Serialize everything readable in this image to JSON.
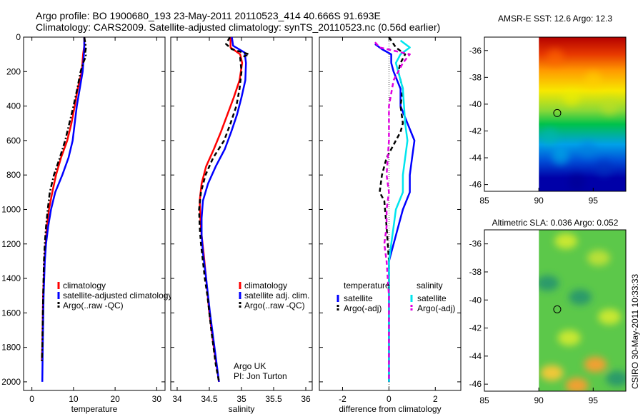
{
  "header": {
    "line1": "Argo profile: BO 1900680_193 23-May-2011 20110523_414 40.666S 91.693E",
    "line2": "Climatology: CARS2009. Satellite-adjusted climatology: synTS_20110523.nc (0.56d earlier)"
  },
  "colors": {
    "climatology": "#ff0000",
    "satellite": "#0000ff",
    "argo": "#000000",
    "satellite_salinity": "#00e5ee",
    "argo_salinity": "#e000e0"
  },
  "credit": "CSIRO 30-May-2011 10:33:33",
  "chart_data": [
    {
      "id": "temperature",
      "type": "line",
      "xlabel": "temperature",
      "ylabel": "",
      "xlim": [
        -2,
        32
      ],
      "xticks": [
        0,
        10,
        20,
        30
      ],
      "ylim": [
        0,
        2050
      ],
      "yticks": [
        0,
        200,
        400,
        600,
        800,
        1000,
        1200,
        1400,
        1600,
        1800,
        2000
      ],
      "y_reversed": true,
      "legend": [
        "climatology",
        "satellite-adjusted climatology",
        "Argo(..raw -QC)"
      ],
      "legend_position": "lower-right",
      "series": [
        {
          "name": "climatology",
          "style": "solid",
          "color_key": "climatology",
          "points": [
            [
              12.6,
              0
            ],
            [
              12.6,
              50
            ],
            [
              12.3,
              100
            ],
            [
              12.0,
              200
            ],
            [
              11.0,
              300
            ],
            [
              10.3,
              400
            ],
            [
              9.5,
              500
            ],
            [
              8.5,
              600
            ],
            [
              7.0,
              700
            ],
            [
              5.8,
              800
            ],
            [
              4.9,
              900
            ],
            [
              4.1,
              1000
            ],
            [
              3.6,
              1100
            ],
            [
              3.3,
              1200
            ],
            [
              3.0,
              1300
            ],
            [
              2.7,
              1500
            ],
            [
              2.5,
              1800
            ],
            [
              2.4,
              1880
            ]
          ]
        },
        {
          "name": "satellite-adjusted climatology",
          "style": "solid",
          "color_key": "satellite",
          "points": [
            [
              12.6,
              0
            ],
            [
              12.6,
              50
            ],
            [
              12.5,
              100
            ],
            [
              12.2,
              200
            ],
            [
              11.5,
              300
            ],
            [
              10.8,
              400
            ],
            [
              10.3,
              500
            ],
            [
              9.8,
              600
            ],
            [
              8.8,
              700
            ],
            [
              7.3,
              800
            ],
            [
              5.6,
              900
            ],
            [
              4.6,
              1000
            ],
            [
              3.9,
              1100
            ],
            [
              3.4,
              1200
            ],
            [
              3.1,
              1300
            ],
            [
              2.8,
              1500
            ],
            [
              2.6,
              1800
            ],
            [
              2.5,
              2000
            ]
          ]
        },
        {
          "name": "Argo(..raw -QC)",
          "style": "dashdot",
          "color_key": "argo",
          "points": [
            [
              12.6,
              0
            ],
            [
              13.0,
              60
            ],
            [
              12.8,
              90
            ],
            [
              13.0,
              110
            ],
            [
              12.3,
              150
            ],
            [
              11.7,
              200
            ],
            [
              10.9,
              300
            ],
            [
              10.0,
              400
            ],
            [
              9.0,
              500
            ],
            [
              8.0,
              600
            ],
            [
              6.7,
              700
            ],
            [
              5.3,
              800
            ],
            [
              4.3,
              900
            ],
            [
              3.8,
              1000
            ],
            [
              3.4,
              1100
            ],
            [
              3.1,
              1200
            ],
            [
              2.9,
              1300
            ],
            [
              2.7,
              1500
            ],
            [
              2.5,
              1800
            ],
            [
              2.4,
              1880
            ]
          ]
        }
      ]
    },
    {
      "id": "salinity",
      "type": "line",
      "xlabel": "salinity",
      "ylabel": "",
      "xlim": [
        33.9,
        36.1
      ],
      "xticks": [
        34,
        34.5,
        35,
        35.5,
        36
      ],
      "ylim": [
        0,
        2050
      ],
      "y_reversed": true,
      "legend": [
        "climatology",
        "satellite adj. clim.",
        "Argo(..raw -QC)"
      ],
      "legend_position": "lower-right",
      "annotation": [
        "Argo UK",
        "PI: Jon Turton"
      ],
      "series": [
        {
          "name": "climatology",
          "style": "solid",
          "color_key": "climatology",
          "points": [
            [
              34.83,
              0
            ],
            [
              34.83,
              60
            ],
            [
              34.98,
              100
            ],
            [
              35.01,
              150
            ],
            [
              34.97,
              250
            ],
            [
              34.88,
              350
            ],
            [
              34.78,
              450
            ],
            [
              34.68,
              550
            ],
            [
              34.57,
              650
            ],
            [
              34.45,
              750
            ],
            [
              34.38,
              850
            ],
            [
              34.35,
              950
            ],
            [
              34.36,
              1050
            ],
            [
              34.38,
              1150
            ],
            [
              34.41,
              1250
            ],
            [
              34.45,
              1400
            ],
            [
              34.5,
              1600
            ],
            [
              34.57,
              1800
            ],
            [
              34.65,
              2000
            ]
          ]
        },
        {
          "name": "satellite adj. clim.",
          "style": "solid",
          "color_key": "satellite",
          "points": [
            [
              34.85,
              0
            ],
            [
              34.87,
              50
            ],
            [
              35.05,
              90
            ],
            [
              35.07,
              150
            ],
            [
              35.06,
              250
            ],
            [
              35.0,
              350
            ],
            [
              34.93,
              450
            ],
            [
              34.84,
              550
            ],
            [
              34.74,
              650
            ],
            [
              34.6,
              750
            ],
            [
              34.48,
              850
            ],
            [
              34.4,
              950
            ],
            [
              34.38,
              1050
            ],
            [
              34.38,
              1150
            ],
            [
              34.4,
              1250
            ],
            [
              34.45,
              1400
            ],
            [
              34.51,
              1600
            ],
            [
              34.58,
              1800
            ],
            [
              34.65,
              2000
            ]
          ]
        },
        {
          "name": "Argo(..raw -QC)",
          "style": "dashed",
          "color_key": "argo",
          "points": [
            [
              34.82,
              0
            ],
            [
              34.76,
              40
            ],
            [
              34.85,
              70
            ],
            [
              35.12,
              100
            ],
            [
              34.98,
              120
            ],
            [
              35.0,
              200
            ],
            [
              34.97,
              300
            ],
            [
              34.92,
              400
            ],
            [
              34.83,
              500
            ],
            [
              34.73,
              600
            ],
            [
              34.56,
              700
            ],
            [
              34.44,
              800
            ],
            [
              34.37,
              900
            ],
            [
              34.34,
              1000
            ],
            [
              34.35,
              1100
            ],
            [
              34.37,
              1200
            ],
            [
              34.4,
              1300
            ],
            [
              34.43,
              1400
            ],
            [
              34.47,
              1500
            ],
            [
              34.53,
              1700
            ],
            [
              34.6,
              1900
            ],
            [
              34.65,
              2000
            ]
          ]
        }
      ]
    },
    {
      "id": "difference",
      "type": "line",
      "xlabel": "difference from climatology",
      "ylabel": "",
      "xlim": [
        -3.0,
        3.1
      ],
      "xticks": [
        -2,
        0,
        2
      ],
      "ylim": [
        0,
        2050
      ],
      "y_reversed": true,
      "legend_groups": [
        {
          "heading": "temperature",
          "items": [
            "satellite",
            "Argo(-adj)"
          ]
        },
        {
          "heading": "salinity",
          "items": [
            "satellite",
            "Argo(-adj)"
          ]
        }
      ],
      "legend_position": "lower-center",
      "series": [
        {
          "name": "temperature satellite",
          "style": "solid",
          "color_key": "satellite",
          "points": [
            [
              -0.6,
              40
            ],
            [
              -0.3,
              70
            ],
            [
              0.1,
              100
            ],
            [
              0.1,
              150
            ],
            [
              0.2,
              200
            ],
            [
              0.5,
              300
            ],
            [
              0.5,
              400
            ],
            [
              0.8,
              500
            ],
            [
              1.1,
              600
            ],
            [
              1.0,
              700
            ],
            [
              0.9,
              800
            ],
            [
              0.9,
              900
            ],
            [
              0.6,
              1000
            ],
            [
              0.4,
              1100
            ],
            [
              0.2,
              1200
            ],
            [
              0.0,
              1300
            ],
            [
              0.0,
              1500
            ],
            [
              0.0,
              2000
            ]
          ]
        },
        {
          "name": "temperature Argo(-adj)",
          "style": "dashed",
          "color_key": "argo",
          "points": [
            [
              0.0,
              0
            ],
            [
              0.3,
              60
            ],
            [
              0.7,
              100
            ],
            [
              0.5,
              150
            ],
            [
              0.4,
              200
            ],
            [
              0.6,
              300
            ],
            [
              0.5,
              400
            ],
            [
              0.6,
              500
            ],
            [
              0.5,
              550
            ],
            [
              -0.1,
              700
            ],
            [
              -0.3,
              800
            ],
            [
              -0.4,
              900
            ],
            [
              -0.2,
              950
            ],
            [
              -0.1,
              1100
            ],
            [
              0.0,
              1300
            ],
            [
              0.0,
              2000
            ]
          ]
        },
        {
          "name": "salinity satellite",
          "style": "solid",
          "color_key": "satellite_salinity",
          "points": [
            [
              0.5,
              20
            ],
            [
              0.9,
              60
            ],
            [
              0.5,
              100
            ],
            [
              0.3,
              150
            ],
            [
              0.6,
              300
            ],
            [
              0.7,
              500
            ],
            [
              0.8,
              600
            ],
            [
              0.7,
              700
            ],
            [
              0.6,
              800
            ],
            [
              0.6,
              900
            ],
            [
              0.3,
              1000
            ],
            [
              0.2,
              1100
            ],
            [
              0.1,
              1200
            ],
            [
              0.0,
              1300
            ],
            [
              0.0,
              1500
            ],
            [
              0.0,
              2000
            ]
          ]
        },
        {
          "name": "salinity Argo(-adj)",
          "style": "dashed",
          "color_key": "argo_salinity",
          "points": [
            [
              -0.6,
              30
            ],
            [
              -0.4,
              60
            ],
            [
              0.9,
              100
            ],
            [
              0.6,
              150
            ],
            [
              0.2,
              250
            ],
            [
              0.0,
              400
            ],
            [
              0.0,
              600
            ],
            [
              -0.1,
              800
            ],
            [
              0.0,
              900
            ],
            [
              -0.1,
              1000
            ],
            [
              -0.1,
              1100
            ],
            [
              -0.2,
              1200
            ],
            [
              -0.1,
              1300
            ],
            [
              0.0,
              1500
            ],
            [
              0.0,
              2000
            ]
          ]
        }
      ]
    },
    {
      "id": "sst_map",
      "type": "heatmap",
      "title": "AMSR-E SST: 12.6 Argo: 12.3",
      "xlim": [
        85,
        98
      ],
      "ylim": [
        -46.5,
        -35
      ],
      "xticks": [
        85,
        90,
        95
      ],
      "yticks": [
        -36,
        -38,
        -40,
        -42,
        -44,
        -46
      ],
      "data_x_range": [
        90,
        98
      ],
      "marker": {
        "lon": 91.693,
        "lat": -40.666
      },
      "bands": [
        {
          "lat": -35.0,
          "color": "#b40000"
        },
        {
          "lat": -36.3,
          "color": "#e83a00"
        },
        {
          "lat": -37.5,
          "color": "#ff9a00"
        },
        {
          "lat": -39.0,
          "color": "#f7e800"
        },
        {
          "lat": -40.5,
          "color": "#88d838"
        },
        {
          "lat": -41.5,
          "color": "#00c24a"
        },
        {
          "lat": -43.0,
          "color": "#00a0e8"
        },
        {
          "lat": -44.2,
          "color": "#0050d8"
        },
        {
          "lat": -45.5,
          "color": "#0000a8"
        }
      ]
    },
    {
      "id": "sla_map",
      "type": "heatmap",
      "title": "Altimetric SLA: 0.036 Argo: 0.052",
      "xlim": [
        85,
        98
      ],
      "ylim": [
        -46.5,
        -35
      ],
      "xticks": [
        85,
        90,
        95
      ],
      "yticks": [
        -36,
        -38,
        -40,
        -42,
        -44,
        -46
      ],
      "data_x_range": [
        90,
        98
      ],
      "marker": {
        "lon": 91.693,
        "lat": -40.666
      },
      "base_color": "#5cc84a",
      "patches": [
        {
          "lon": 92.5,
          "lat": -35.8,
          "color": "#c8e832"
        },
        {
          "lon": 95.5,
          "lat": -37.0,
          "color": "#b8e038"
        },
        {
          "lon": 90.8,
          "lat": -38.8,
          "color": "#2c9a6a"
        },
        {
          "lon": 93.8,
          "lat": -39.8,
          "color": "#2c9a6a"
        },
        {
          "lon": 96.5,
          "lat": -41.2,
          "color": "#c8e832"
        },
        {
          "lon": 92.8,
          "lat": -42.7,
          "color": "#c8e832"
        },
        {
          "lon": 95.2,
          "lat": -44.6,
          "color": "#f0a030"
        },
        {
          "lon": 91.2,
          "lat": -45.2,
          "color": "#f0c838"
        },
        {
          "lon": 93.5,
          "lat": -46.1,
          "color": "#f0a030"
        },
        {
          "lon": 97.2,
          "lat": -45.6,
          "color": "#2c9a6a"
        }
      ]
    }
  ]
}
